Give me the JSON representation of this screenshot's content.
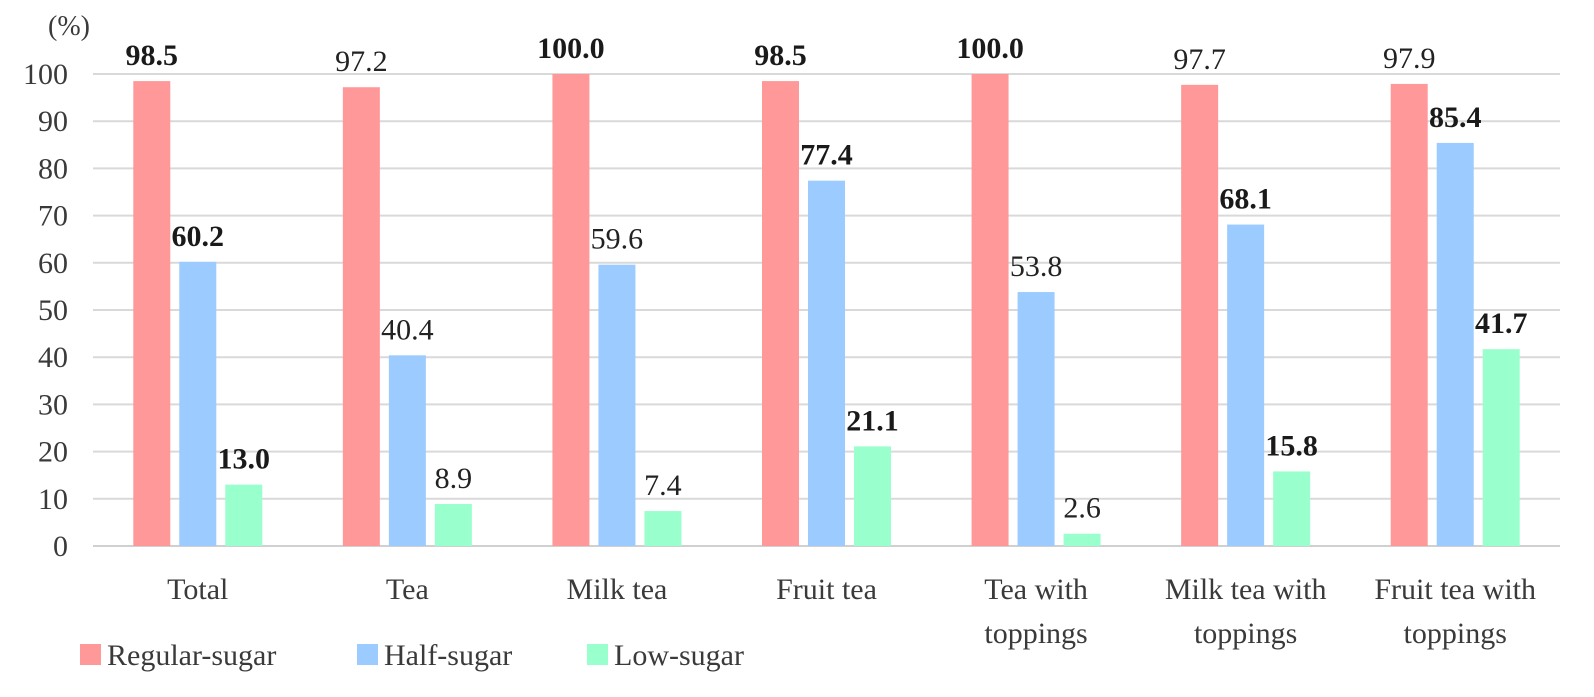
{
  "chart_data": {
    "type": "bar",
    "unit_label": "(%)",
    "ylim": [
      0,
      100
    ],
    "yticks": [
      0,
      10,
      20,
      30,
      40,
      50,
      60,
      70,
      80,
      90,
      100
    ],
    "grid": true,
    "legend_position": "bottom-left",
    "categories": [
      [
        "Total"
      ],
      [
        "Tea"
      ],
      [
        "Milk tea"
      ],
      [
        "Fruit tea"
      ],
      [
        "Tea with",
        "toppings"
      ],
      [
        "Milk tea with",
        "toppings"
      ],
      [
        "Fruit tea with",
        "toppings"
      ]
    ],
    "series": [
      {
        "name": "Regular-sugar",
        "color": "#ff9999",
        "values": [
          98.5,
          97.2,
          100.0,
          98.5,
          100.0,
          97.7,
          97.9
        ],
        "labels": [
          "98.5",
          "97.2",
          "100.0",
          "98.5",
          "100.0",
          "97.7",
          "97.9"
        ],
        "bold": [
          true,
          false,
          true,
          true,
          true,
          false,
          false
        ]
      },
      {
        "name": "Half-sugar",
        "color": "#9ccbff",
        "values": [
          60.2,
          40.4,
          59.6,
          77.4,
          53.8,
          68.1,
          85.4
        ],
        "labels": [
          "60.2",
          "40.4",
          "59.6",
          "77.4",
          "53.8",
          "68.1",
          "85.4"
        ],
        "bold": [
          true,
          false,
          false,
          true,
          false,
          true,
          true
        ]
      },
      {
        "name": "Low-sugar",
        "color": "#99ffcc",
        "values": [
          13.0,
          8.9,
          7.4,
          21.1,
          2.6,
          15.8,
          41.7
        ],
        "labels": [
          "13.0",
          "8.9",
          "7.4",
          "21.1",
          "2.6",
          "15.8",
          "41.7"
        ],
        "bold": [
          true,
          false,
          false,
          true,
          false,
          true,
          true
        ]
      }
    ]
  }
}
